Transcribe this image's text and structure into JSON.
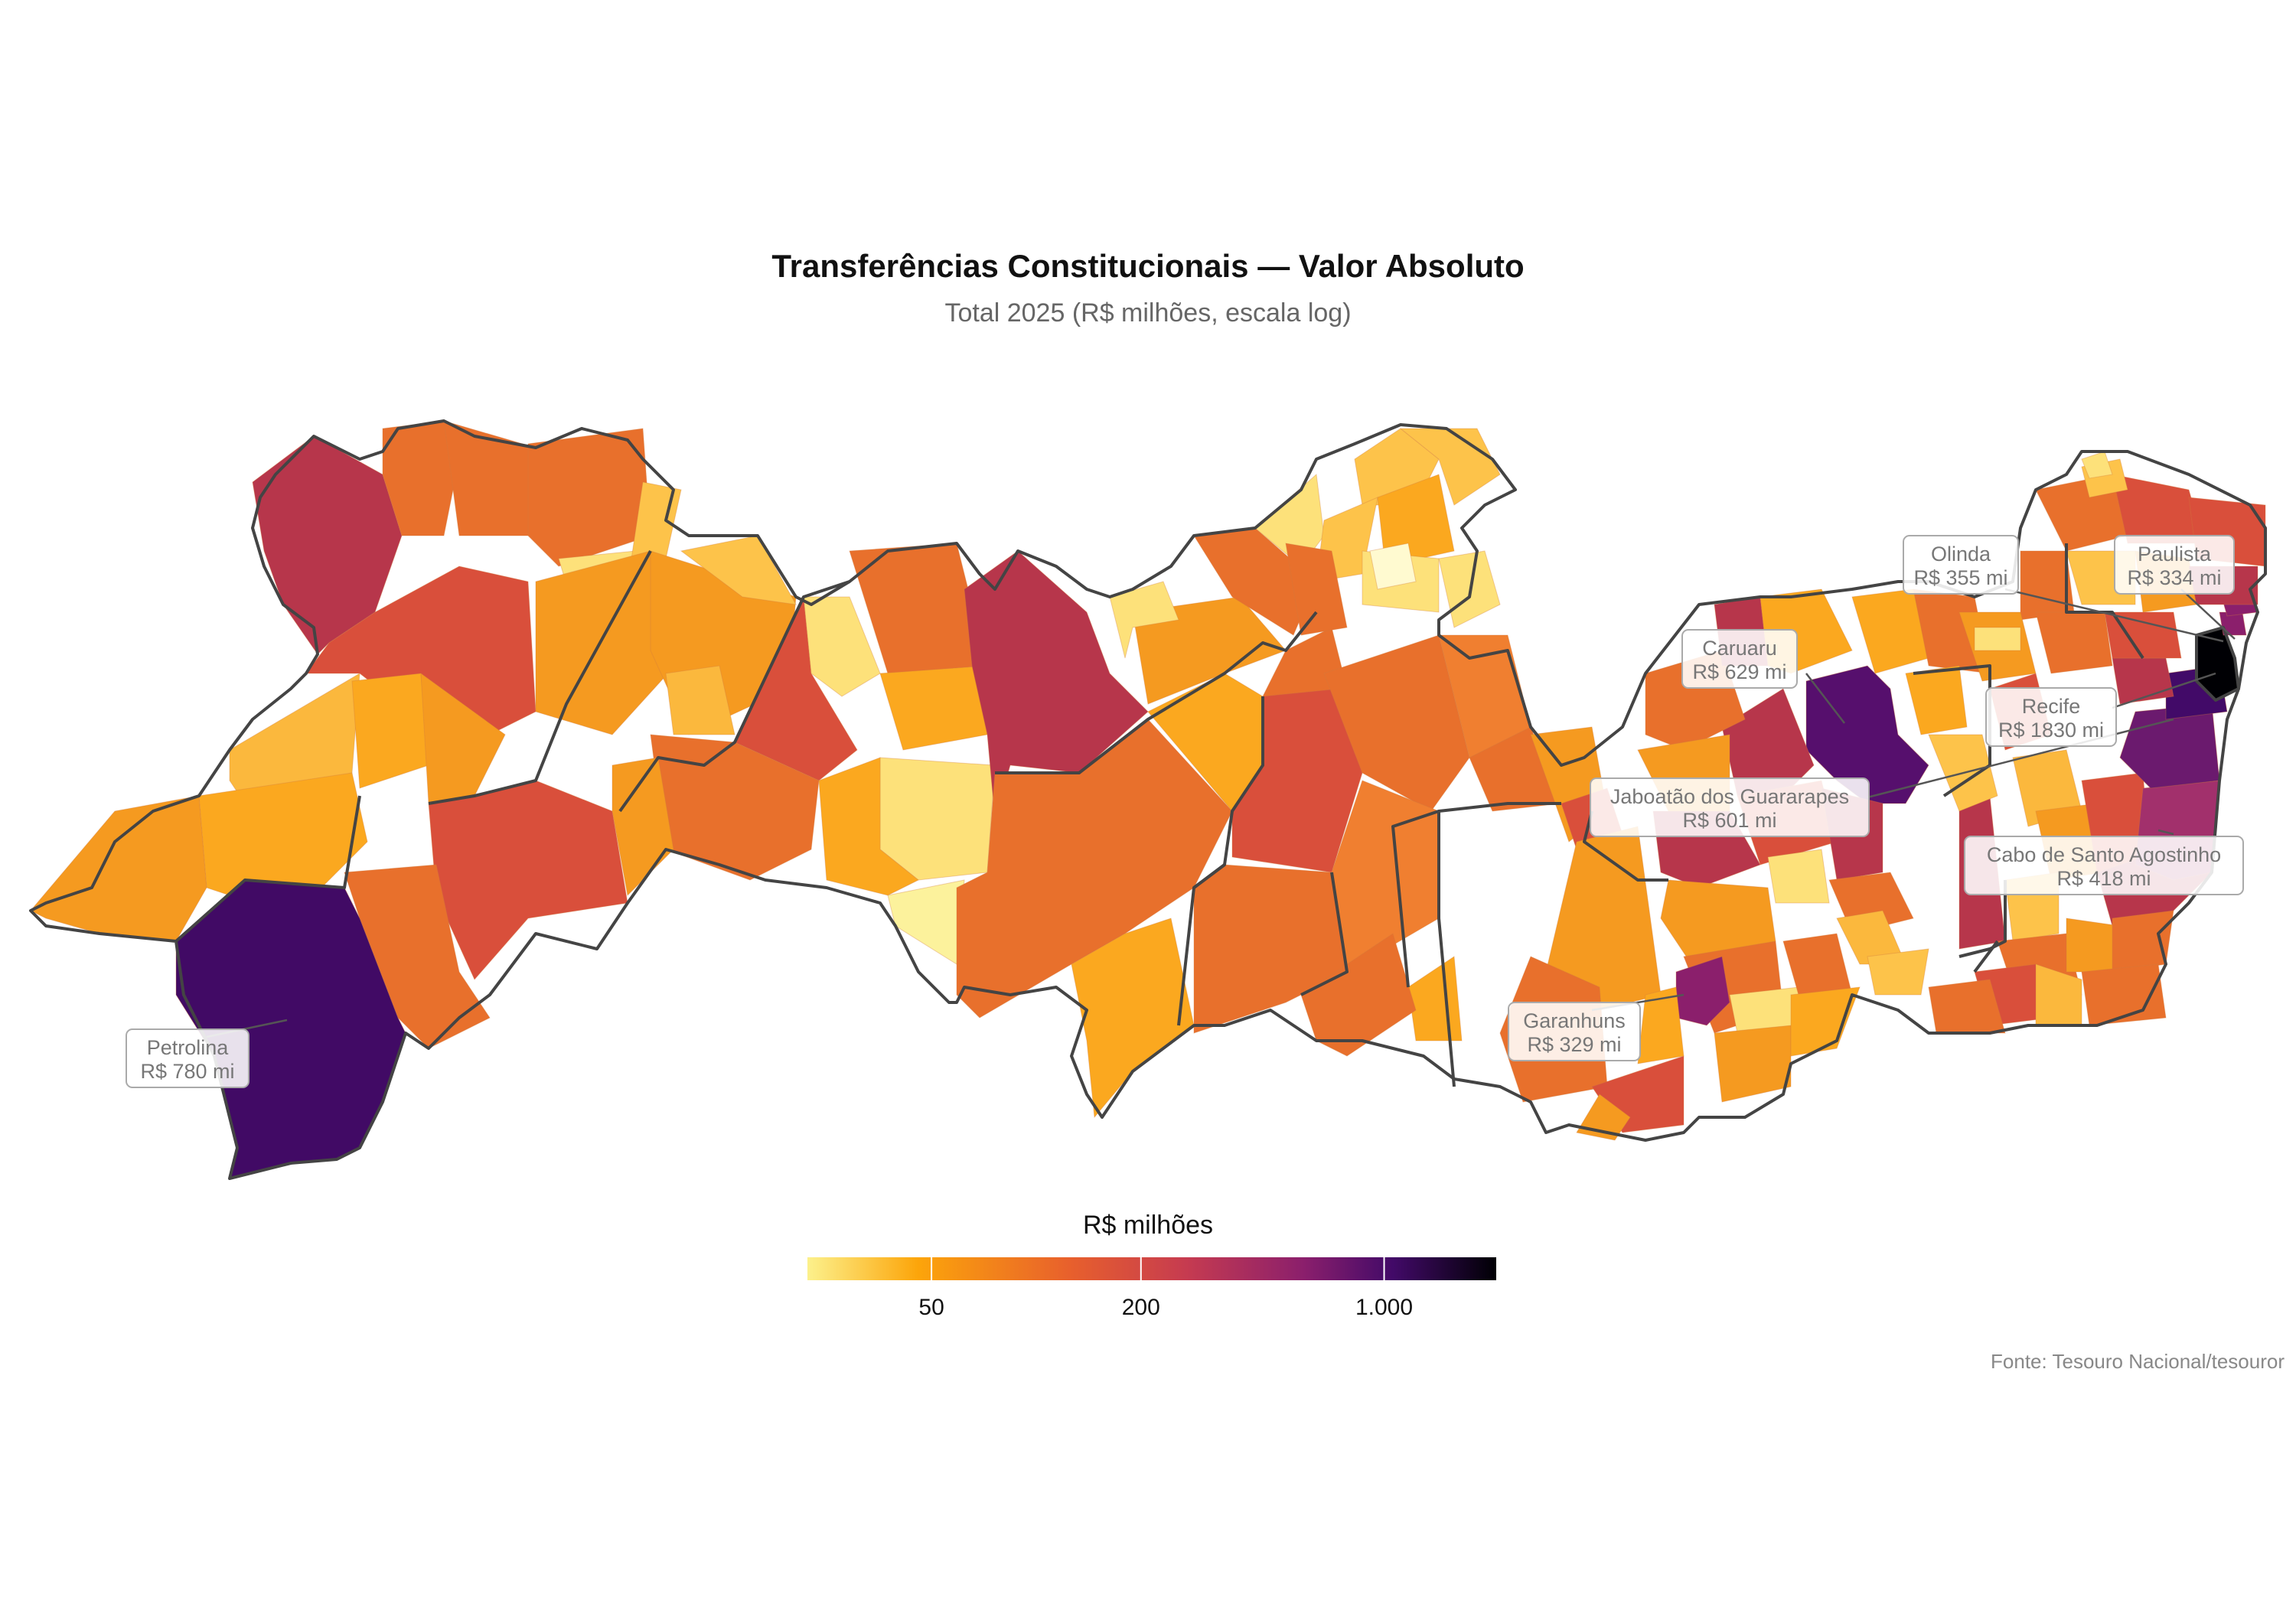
{
  "chart": {
    "title": "Transferências Constitucionais — Valor Absoluto",
    "subtitle": "Total 2025 (R$ milhões, escala log)",
    "source": "Fonte: Tesouro Nacional/tesouror"
  },
  "legend": {
    "title": "R$ milhões",
    "ticks": [
      "50",
      "200",
      "1.000"
    ],
    "tick_values": [
      50,
      200,
      1000
    ],
    "range": [
      22,
      2100
    ],
    "scale": "log",
    "palette": "inferno (reversed)",
    "colors": [
      "#fcffa4",
      "#f7d13d",
      "#fca50a",
      "#e8602c",
      "#b73779",
      "#781c6d",
      "#420a68",
      "#000004"
    ]
  },
  "labels": [
    {
      "name": "Olinda",
      "value": "R$ 355 mi",
      "amount": 355
    },
    {
      "name": "Paulista",
      "value": "R$ 334 mi",
      "amount": 334
    },
    {
      "name": "Caruaru",
      "value": "R$ 629 mi",
      "amount": 629
    },
    {
      "name": "Recife",
      "value": "R$ 1830 mi",
      "amount": 1830
    },
    {
      "name": "Jaboatão dos Guararapes",
      "value": "R$ 601 mi",
      "amount": 601
    },
    {
      "name": "Cabo de Santo Agostinho",
      "value": "R$ 418 mi",
      "amount": 418
    },
    {
      "name": "Garanhuns",
      "value": "R$ 329 mi",
      "amount": 329
    },
    {
      "name": "Petrolina",
      "value": "R$ 780 mi",
      "amount": 780
    }
  ]
}
